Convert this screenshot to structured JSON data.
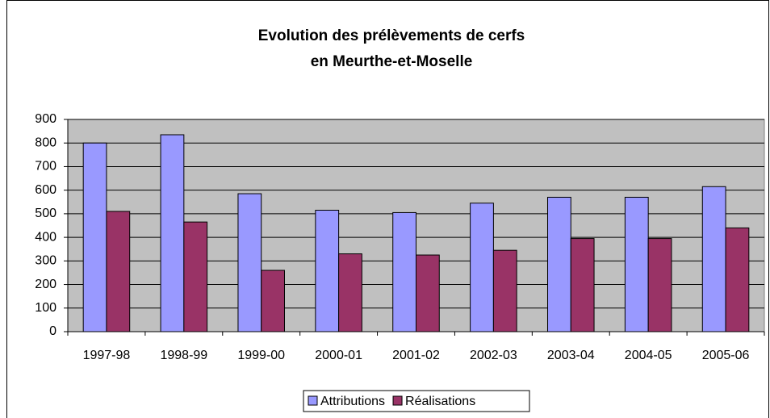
{
  "chart_data": {
    "type": "bar",
    "title": "Evolution des prélèvements de cerfs",
    "subtitle": "en Meurthe-et-Moselle",
    "categories": [
      "1997-98",
      "1998-99",
      "1999-00",
      "2000-01",
      "2001-02",
      "2002-03",
      "2003-04",
      "2004-05",
      "2005-06"
    ],
    "series": [
      {
        "name": "Attributions",
        "color": "#9999ff",
        "values": [
          800,
          835,
          585,
          515,
          505,
          545,
          570,
          570,
          615
        ]
      },
      {
        "name": "Réalisations",
        "color": "#993366",
        "values": [
          510,
          465,
          260,
          330,
          325,
          345,
          395,
          395,
          440
        ]
      }
    ],
    "ylim": [
      0,
      900
    ],
    "yticks": [
      0,
      100,
      200,
      300,
      400,
      500,
      600,
      700,
      800,
      900
    ],
    "grid": true,
    "legend": "bottom"
  }
}
